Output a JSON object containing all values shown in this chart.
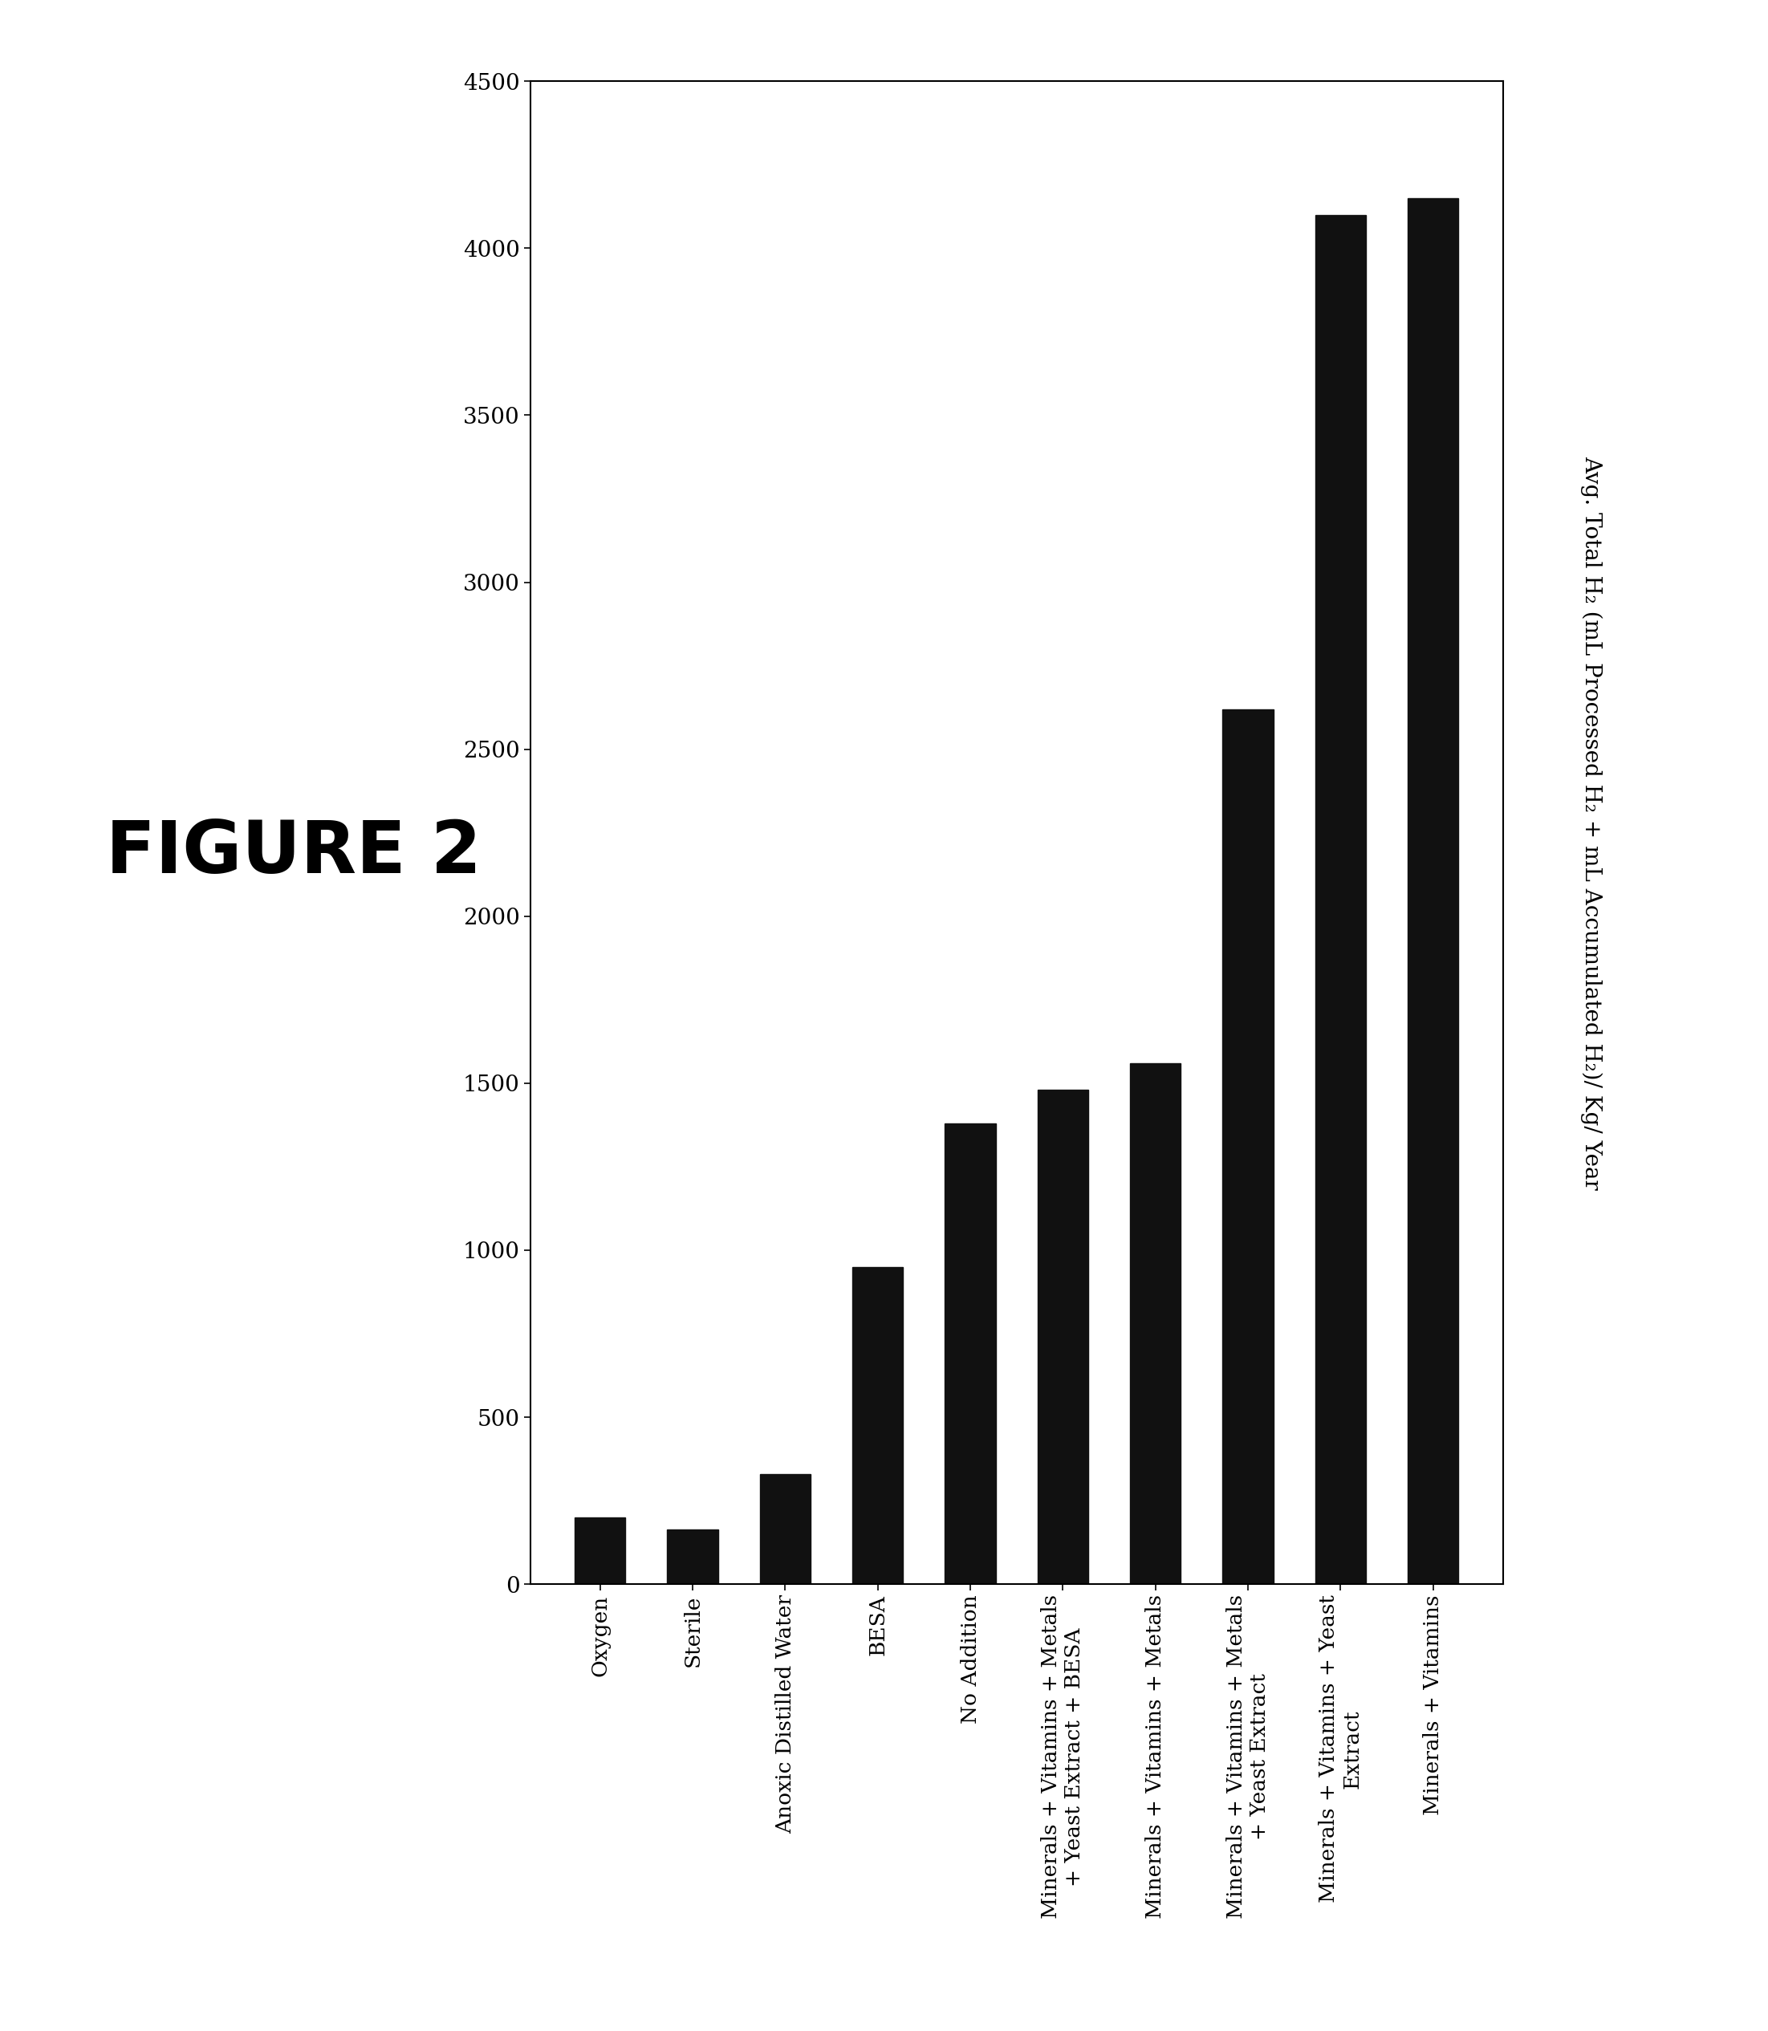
{
  "categories": [
    "Oxygen",
    "Sterile",
    "Anoxic Distilled Water",
    "BESA",
    "No Addition",
    "Minerals + Vitamins + Metals\n+ Yeast Extract + BESA",
    "Minerals + Vitamins + Metals",
    "Minerals + Vitamins + Metals\n+ Yeast Extract",
    "Minerals + Vitamins + Yeast\nExtract",
    "Minerals + Vitamins"
  ],
  "values": [
    200,
    165,
    330,
    950,
    1380,
    1480,
    1560,
    2620,
    4100,
    4150
  ],
  "bar_color": "#111111",
  "ylim": [
    0,
    4500
  ],
  "yticks": [
    0,
    500,
    1000,
    1500,
    2000,
    2500,
    3000,
    3500,
    4000,
    4500
  ],
  "ylabel": "Avg. Total H₂ (mL Processed H₂ + mL Accumulated H₂)/ Kg/ Year",
  "figure_label": "FIGURE 2",
  "background_color": "#ffffff",
  "bar_width": 0.55
}
